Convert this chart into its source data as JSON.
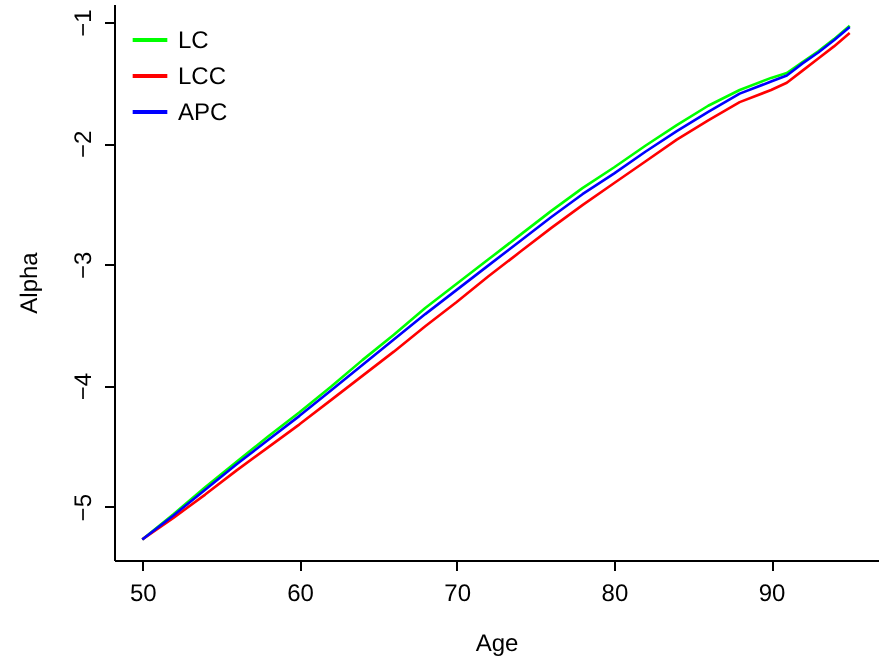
{
  "chart_data": {
    "type": "line",
    "xlabel": "Age",
    "ylabel": "Alpha",
    "x": [
      50,
      52,
      54,
      56,
      58,
      60,
      62,
      64,
      66,
      68,
      70,
      72,
      74,
      76,
      78,
      80,
      82,
      84,
      86,
      88,
      90,
      91,
      92,
      93,
      94,
      95
    ],
    "series": [
      {
        "name": "LC",
        "color": "#00ff00",
        "values": [
          -5.27,
          -5.06,
          -4.84,
          -4.63,
          -4.42,
          -4.22,
          -4.01,
          -3.79,
          -3.58,
          -3.36,
          -3.16,
          -2.96,
          -2.76,
          -2.56,
          -2.37,
          -2.2,
          -2.02,
          -1.85,
          -1.69,
          -1.56,
          -1.46,
          -1.42,
          -1.33,
          -1.24,
          -1.14,
          -1.03
        ]
      },
      {
        "name": "LCC",
        "color": "#ff0000",
        "values": [
          -5.27,
          -5.09,
          -4.9,
          -4.7,
          -4.51,
          -4.32,
          -4.12,
          -3.92,
          -3.72,
          -3.51,
          -3.31,
          -3.1,
          -2.9,
          -2.7,
          -2.51,
          -2.33,
          -2.15,
          -1.97,
          -1.81,
          -1.66,
          -1.56,
          -1.5,
          -1.4,
          -1.3,
          -1.2,
          -1.09
        ]
      },
      {
        "name": "APC",
        "color": "#0000ff",
        "values": [
          -5.27,
          -5.07,
          -4.86,
          -4.65,
          -4.45,
          -4.25,
          -4.04,
          -3.83,
          -3.62,
          -3.41,
          -3.21,
          -3.01,
          -2.81,
          -2.61,
          -2.42,
          -2.25,
          -2.07,
          -1.9,
          -1.74,
          -1.59,
          -1.49,
          -1.44,
          -1.34,
          -1.25,
          -1.15,
          -1.04
        ]
      }
    ],
    "xlim": [
      48.2,
      96.8
    ],
    "xticks": [
      50,
      60,
      70,
      80,
      90
    ],
    "ylim": [
      -5.44,
      -0.85
    ],
    "yticks": [
      -5,
      -4,
      -3,
      -2,
      -1
    ],
    "grid": false,
    "legend": "top left"
  }
}
